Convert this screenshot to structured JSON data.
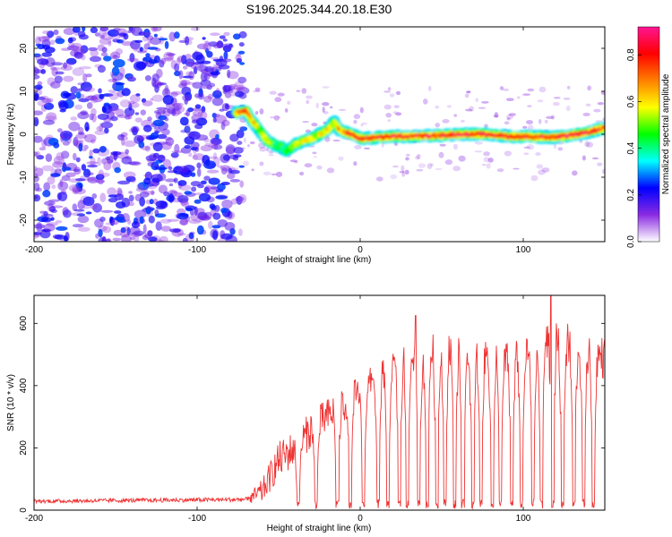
{
  "chart_data": [
    {
      "type": "heatmap",
      "title": "S196.2025.344.20.18.E30",
      "xlabel": "Height of straight line (km)",
      "ylabel": "Frequency (Hz)",
      "xlim": [
        -200,
        150
      ],
      "ylim": [
        -25,
        25
      ],
      "xticks": [
        -200,
        -100,
        0,
        100
      ],
      "yticks": [
        20,
        10,
        0,
        -10,
        -20
      ],
      "colorbar": {
        "label": "Normalized spectral amplitude",
        "range": [
          0.0,
          0.92
        ],
        "ticks": [
          "0.0",
          "0.2",
          "0.4",
          "0.6",
          "0.8"
        ],
        "colormap": [
          "#ffffff",
          "#8a2be2",
          "#0000ff",
          "#00ffff",
          "#00ff00",
          "#ffff00",
          "#ff7f00",
          "#ff0000",
          "#ff1493"
        ]
      },
      "noise_region_x": [
        -200,
        -75
      ],
      "ridge": {
        "x": [
          -76,
          -70,
          -66,
          -62,
          -57,
          -52,
          -48,
          -45,
          -40,
          -35,
          -30,
          -25,
          -20,
          -16,
          -13,
          -10,
          -5,
          0,
          10,
          20,
          30,
          40,
          50,
          60,
          70,
          80,
          90,
          100,
          110,
          120,
          130,
          140,
          150
        ],
        "y": [
          5,
          5.5,
          3,
          1,
          -1.5,
          -2.5,
          -3,
          -4,
          -2.5,
          -1.5,
          -1,
          0,
          1,
          3,
          1,
          0.5,
          0,
          -1,
          -0.8,
          -0.5,
          -0.5,
          -0.4,
          -0.3,
          0,
          0,
          0,
          -0.5,
          -0.5,
          -0.6,
          -0.7,
          -0.2,
          0.5,
          1.5
        ],
        "peak_amplitude": [
          0.7,
          0.8,
          0.6,
          0.55,
          0.55,
          0.45,
          0.45,
          0.4,
          0.5,
          0.55,
          0.55,
          0.55,
          0.6,
          0.55,
          0.7,
          0.75,
          0.75,
          0.8,
          0.8,
          0.85,
          0.8,
          0.8,
          0.8,
          0.85,
          0.85,
          0.9,
          0.85,
          0.8,
          0.8,
          0.8,
          0.85,
          0.8,
          0.75
        ]
      }
    },
    {
      "type": "line",
      "xlabel": "Height of straight line (km)",
      "ylabel": "SNR (10 * v/v)",
      "xlim": [
        -200,
        150
      ],
      "ylim": [
        0,
        690
      ],
      "xticks": [
        -200,
        -100,
        0,
        100
      ],
      "yticks": [
        0,
        200,
        400,
        600
      ],
      "series": [
        {
          "name": "SNR",
          "color": "#ee3333",
          "envelope_x": [
            -200,
            -70,
            -60,
            -50,
            -40,
            -30,
            -20,
            -10,
            0,
            10,
            20,
            30,
            40,
            50,
            60,
            70,
            80,
            90,
            100,
            110,
            120,
            130,
            140,
            150
          ],
          "envelope_y": [
            25,
            30,
            60,
            160,
            200,
            260,
            300,
            340,
            380,
            420,
            460,
            490,
            500,
            520,
            520,
            500,
            490,
            480,
            490,
            520,
            540,
            520,
            500,
            490
          ],
          "noise_amplitude": [
            10,
            12,
            40,
            60,
            60,
            60,
            60,
            60,
            55,
            55,
            50,
            50,
            55,
            60,
            60,
            60,
            60,
            60,
            60,
            70,
            80,
            75,
            70,
            70
          ],
          "annotated_peaks": [
            {
              "x": 8,
              "y": 420
            },
            {
              "x": 34,
              "y": 625
            },
            {
              "x": 117,
              "y": 690
            }
          ],
          "dropouts_x": [
            -38,
            -27,
            -14,
            -6,
            2,
            11,
            17,
            24,
            29,
            36,
            41,
            47,
            52,
            58,
            63,
            69,
            74,
            81,
            86,
            93,
            99,
            106,
            111,
            118,
            124,
            131,
            137,
            143
          ]
        }
      ]
    }
  ]
}
